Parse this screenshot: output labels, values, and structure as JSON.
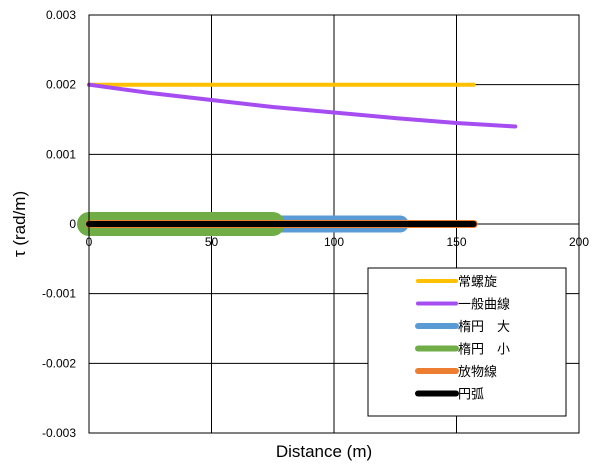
{
  "chart_data": {
    "type": "line",
    "title": "",
    "xlabel": "Distance (m)",
    "ylabel": "τ (rad/m)",
    "xlim": [
      0,
      200
    ],
    "ylim": [
      -0.003,
      0.003
    ],
    "x_ticks": [
      0,
      50,
      100,
      150,
      200
    ],
    "y_ticks": [
      0.003,
      0.002,
      0.001,
      0,
      -0.001,
      -0.002,
      -0.003
    ],
    "x_tick_labels": [
      "0",
      "50",
      "100",
      "150",
      "200"
    ],
    "y_tick_labels": [
      "0.003",
      "0.002",
      "0.001",
      "0",
      "-0.001",
      "-0.002",
      "-0.003"
    ],
    "grid": true,
    "legend_position": "bottom-right",
    "series": [
      {
        "name": "常螺旋",
        "color": "#FFC000",
        "x": [
          0,
          157
        ],
        "y": [
          0.002,
          0.002
        ]
      },
      {
        "name": "一般曲線",
        "color": "#A64DF2",
        "x": [
          0,
          25,
          50,
          75,
          100,
          125,
          150,
          174
        ],
        "y": [
          0.002,
          0.00188,
          0.00178,
          0.00168,
          0.0016,
          0.00152,
          0.00145,
          0.0014
        ]
      },
      {
        "name": "楕円　大",
        "color": "#5B9BD5",
        "x": [
          0,
          127
        ],
        "y": [
          0,
          0
        ]
      },
      {
        "name": "楕円　小",
        "color": "#70AD47",
        "x": [
          0,
          75
        ],
        "y": [
          0,
          0
        ]
      },
      {
        "name": "放物線",
        "color": "#ED7D31",
        "x": [
          0,
          157
        ],
        "y": [
          0,
          0
        ]
      },
      {
        "name": "円弧",
        "color": "#000000",
        "x": [
          0,
          157
        ],
        "y": [
          0,
          0
        ]
      }
    ]
  }
}
